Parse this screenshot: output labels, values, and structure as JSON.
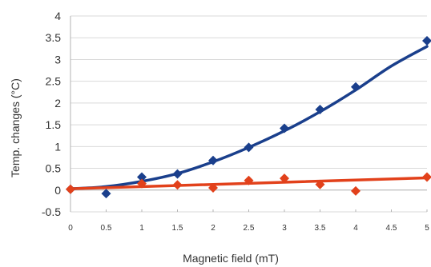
{
  "chart_data": {
    "type": "scatter",
    "xlabel": "Magnetic field (mT)",
    "ylabel": "Temp. changes (°C)",
    "xlim": [
      0,
      5
    ],
    "ylim": [
      -0.5,
      4
    ],
    "x_ticks": [
      "0",
      "0.5",
      "1",
      "1.5",
      "2",
      "2.5",
      "3",
      "3.5",
      "4",
      "4.5",
      "5"
    ],
    "y_ticks": [
      "-0.5",
      "0",
      "0.5",
      "1",
      "1.5",
      "2",
      "2.5",
      "3",
      "3.5",
      "4"
    ],
    "grid": "horizontal",
    "series": [
      {
        "color": "#1a3f8c",
        "marker": "diamond",
        "x": [
          0,
          0.5,
          1,
          1.5,
          2,
          2.5,
          3,
          3.5,
          4,
          5
        ],
        "y": [
          0.02,
          -0.08,
          0.3,
          0.37,
          0.68,
          0.98,
          1.42,
          1.85,
          2.37,
          3.43
        ],
        "trendline": {
          "type": "polynomial",
          "x": [
            0,
            0.5,
            1,
            1.5,
            2,
            2.5,
            3,
            3.5,
            4,
            4.5,
            5
          ],
          "y": [
            0.03,
            0.08,
            0.2,
            0.38,
            0.65,
            0.98,
            1.36,
            1.8,
            2.3,
            2.85,
            3.3
          ]
        }
      },
      {
        "color": "#e2411b",
        "marker": "diamond",
        "x": [
          0,
          1,
          1.5,
          2,
          2.5,
          3,
          3.5,
          4,
          5
        ],
        "y": [
          0.02,
          0.15,
          0.12,
          0.05,
          0.22,
          0.27,
          0.13,
          -0.02,
          0.3
        ],
        "trendline": {
          "type": "linear",
          "x": [
            0,
            5
          ],
          "y": [
            0.03,
            0.28
          ]
        }
      }
    ]
  }
}
